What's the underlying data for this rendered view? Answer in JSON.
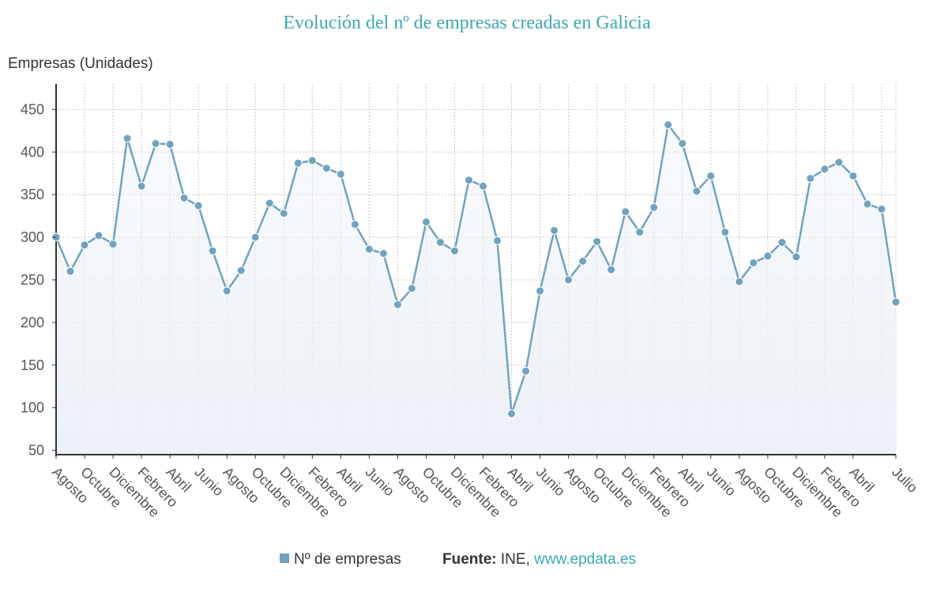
{
  "chart_data": {
    "type": "area",
    "title": "Evolución del nº de empresas creadas en Galicia",
    "ylabel": "Empresas (Unidades)",
    "xlabel": "",
    "ylim": [
      45,
      480
    ],
    "yticks": [
      50,
      100,
      150,
      200,
      250,
      300,
      350,
      400,
      450
    ],
    "grid": true,
    "legend_position": "bottom",
    "tick_labels": [
      "Agosto",
      "Octubre",
      "Diciembre",
      "Febrero",
      "Abril",
      "Junio",
      "Agosto",
      "Octubre",
      "Diciembre",
      "Febrero",
      "Abril",
      "Junio",
      "Agosto",
      "Octubre",
      "Diciembre",
      "Febrero",
      "Abril",
      "Junio",
      "Agosto",
      "Octubre",
      "Diciembre",
      "Febrero",
      "Abril",
      "Junio",
      "Agosto",
      "Octubre",
      "Diciembre",
      "Febrero",
      "Abril",
      "Julio"
    ],
    "tick_label_positions": [
      0,
      2,
      4,
      6,
      8,
      10,
      12,
      14,
      16,
      18,
      20,
      22,
      24,
      26,
      28,
      30,
      32,
      34,
      36,
      38,
      40,
      42,
      44,
      46,
      48,
      50,
      52,
      54,
      56,
      59
    ],
    "series": [
      {
        "name": "Nº de empresas",
        "color": "#6fa3c0",
        "values": [
          300,
          260,
          291,
          302,
          292,
          416,
          360,
          410,
          409,
          346,
          337,
          284,
          237,
          261,
          300,
          340,
          328,
          387,
          390,
          381,
          374,
          315,
          286,
          281,
          221,
          240,
          318,
          294,
          284,
          367,
          360,
          296,
          93,
          143,
          237,
          308,
          250,
          272,
          295,
          262,
          330,
          306,
          335,
          432,
          410,
          354,
          372,
          306,
          248,
          270,
          278,
          294,
          277,
          369,
          380,
          388,
          372,
          339,
          333,
          224
        ]
      }
    ]
  },
  "footer": {
    "source_label": "Fuente:",
    "source_text": "INE,",
    "source_link": "www.epdata.es"
  }
}
